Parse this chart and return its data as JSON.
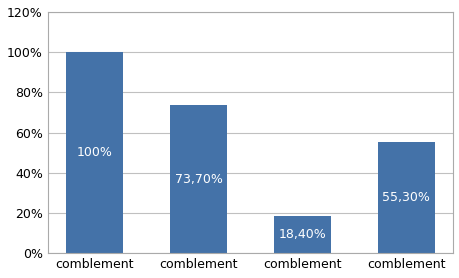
{
  "categories": [
    "comblement",
    "comblement",
    "comblement",
    "comblement"
  ],
  "values": [
    100,
    73.7,
    18.4,
    55.3
  ],
  "bar_labels": [
    "100%",
    "73,70%",
    "18,40%",
    "55,30%"
  ],
  "bar_color": "#4472a8",
  "ylabel_ticks": [
    "0%",
    "20%",
    "40%",
    "60%",
    "80%",
    "100%",
    "120%"
  ],
  "ylim": [
    0,
    120
  ],
  "yticks": [
    0,
    20,
    40,
    60,
    80,
    100,
    120
  ],
  "background_color": "#ffffff",
  "plot_bg_color": "#ffffff",
  "grid_color": "#c0c0c0",
  "bar_text_color": "#ffffff",
  "bar_fontsize": 9,
  "tick_fontsize": 9,
  "xlabel_fontsize": 9
}
